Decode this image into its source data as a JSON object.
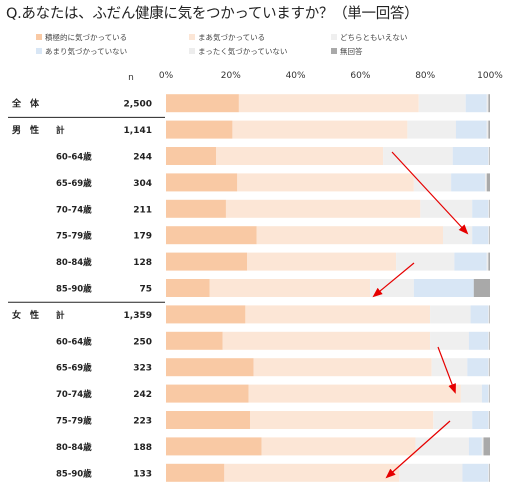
{
  "title": "Q.あなたは、ふだん健康に気をつかっていますか？（単一回答）",
  "chart_data": {
    "type": "bar",
    "stacked": true,
    "orientation": "horizontal",
    "percent_scale": true,
    "xlim": [
      0,
      100
    ],
    "x_ticks": [
      "0%",
      "20%",
      "40%",
      "60%",
      "80%",
      "100%"
    ],
    "n_header": "n",
    "series": [
      {
        "name": "積極的に気づかっている",
        "color": "#f9c9a4"
      },
      {
        "name": "まあ気づかっている",
        "color": "#fce6d6"
      },
      {
        "name": "どちらともいえない",
        "color": "#efefef"
      },
      {
        "name": "あまり気づかっていない",
        "color": "#d8e6f5"
      },
      {
        "name": "まったく気づかっていない",
        "color": "#ededed"
      },
      {
        "name": "無回答",
        "color": "#a9a9a9"
      }
    ],
    "rows": [
      {
        "group": "全　体",
        "label": "",
        "n": "2,500",
        "values": [
          22.5,
          55.5,
          14.5,
          6.5,
          0.5,
          0.5
        ]
      },
      {
        "group": "男　性",
        "label": "計",
        "n": "1,141",
        "values": [
          20.5,
          54.0,
          15.0,
          9.5,
          0.5,
          0.5
        ]
      },
      {
        "group": "",
        "label": "60-64歳",
        "n": "244",
        "values": [
          15.5,
          51.5,
          21.5,
          11.0,
          0.3,
          0.2
        ]
      },
      {
        "group": "",
        "label": "65-69歳",
        "n": "304",
        "values": [
          22.0,
          54.5,
          11.5,
          10.5,
          0.5,
          1.0
        ]
      },
      {
        "group": "",
        "label": "70-74歳",
        "n": "211",
        "values": [
          18.5,
          60.0,
          16.0,
          5.0,
          0.3,
          0.2
        ]
      },
      {
        "group": "",
        "label": "75-79歳",
        "n": "179",
        "values": [
          28.0,
          57.5,
          9.0,
          5.0,
          0.3,
          0.2
        ]
      },
      {
        "group": "",
        "label": "80-84歳",
        "n": "128",
        "values": [
          25.0,
          46.0,
          18.0,
          10.0,
          0.5,
          0.5
        ]
      },
      {
        "group": "",
        "label": "85-90歳",
        "n": "75",
        "values": [
          13.5,
          49.5,
          13.5,
          18.5,
          0.0,
          5.0
        ]
      },
      {
        "group": "女　性",
        "label": "計",
        "n": "1,359",
        "values": [
          24.5,
          57.0,
          12.5,
          5.5,
          0.3,
          0.2
        ]
      },
      {
        "group": "",
        "label": "60-64歳",
        "n": "250",
        "values": [
          17.5,
          64.0,
          12.0,
          6.0,
          0.3,
          0.2
        ]
      },
      {
        "group": "",
        "label": "65-69歳",
        "n": "323",
        "values": [
          27.0,
          55.0,
          11.0,
          6.5,
          0.3,
          0.2
        ]
      },
      {
        "group": "",
        "label": "70-74歳",
        "n": "242",
        "values": [
          25.5,
          65.5,
          6.5,
          2.0,
          0.3,
          0.2
        ]
      },
      {
        "group": "",
        "label": "75-79歳",
        "n": "223",
        "values": [
          26.0,
          56.5,
          12.0,
          5.0,
          0.3,
          0.2
        ]
      },
      {
        "group": "",
        "label": "80-84歳",
        "n": "188",
        "values": [
          29.5,
          47.5,
          16.5,
          4.0,
          0.5,
          2.0
        ]
      },
      {
        "group": "",
        "label": "85-90歳",
        "n": "133",
        "values": [
          18.0,
          54.0,
          19.5,
          8.0,
          0.3,
          0.2
        ]
      }
    ],
    "grid": false,
    "legend_position": "top"
  }
}
